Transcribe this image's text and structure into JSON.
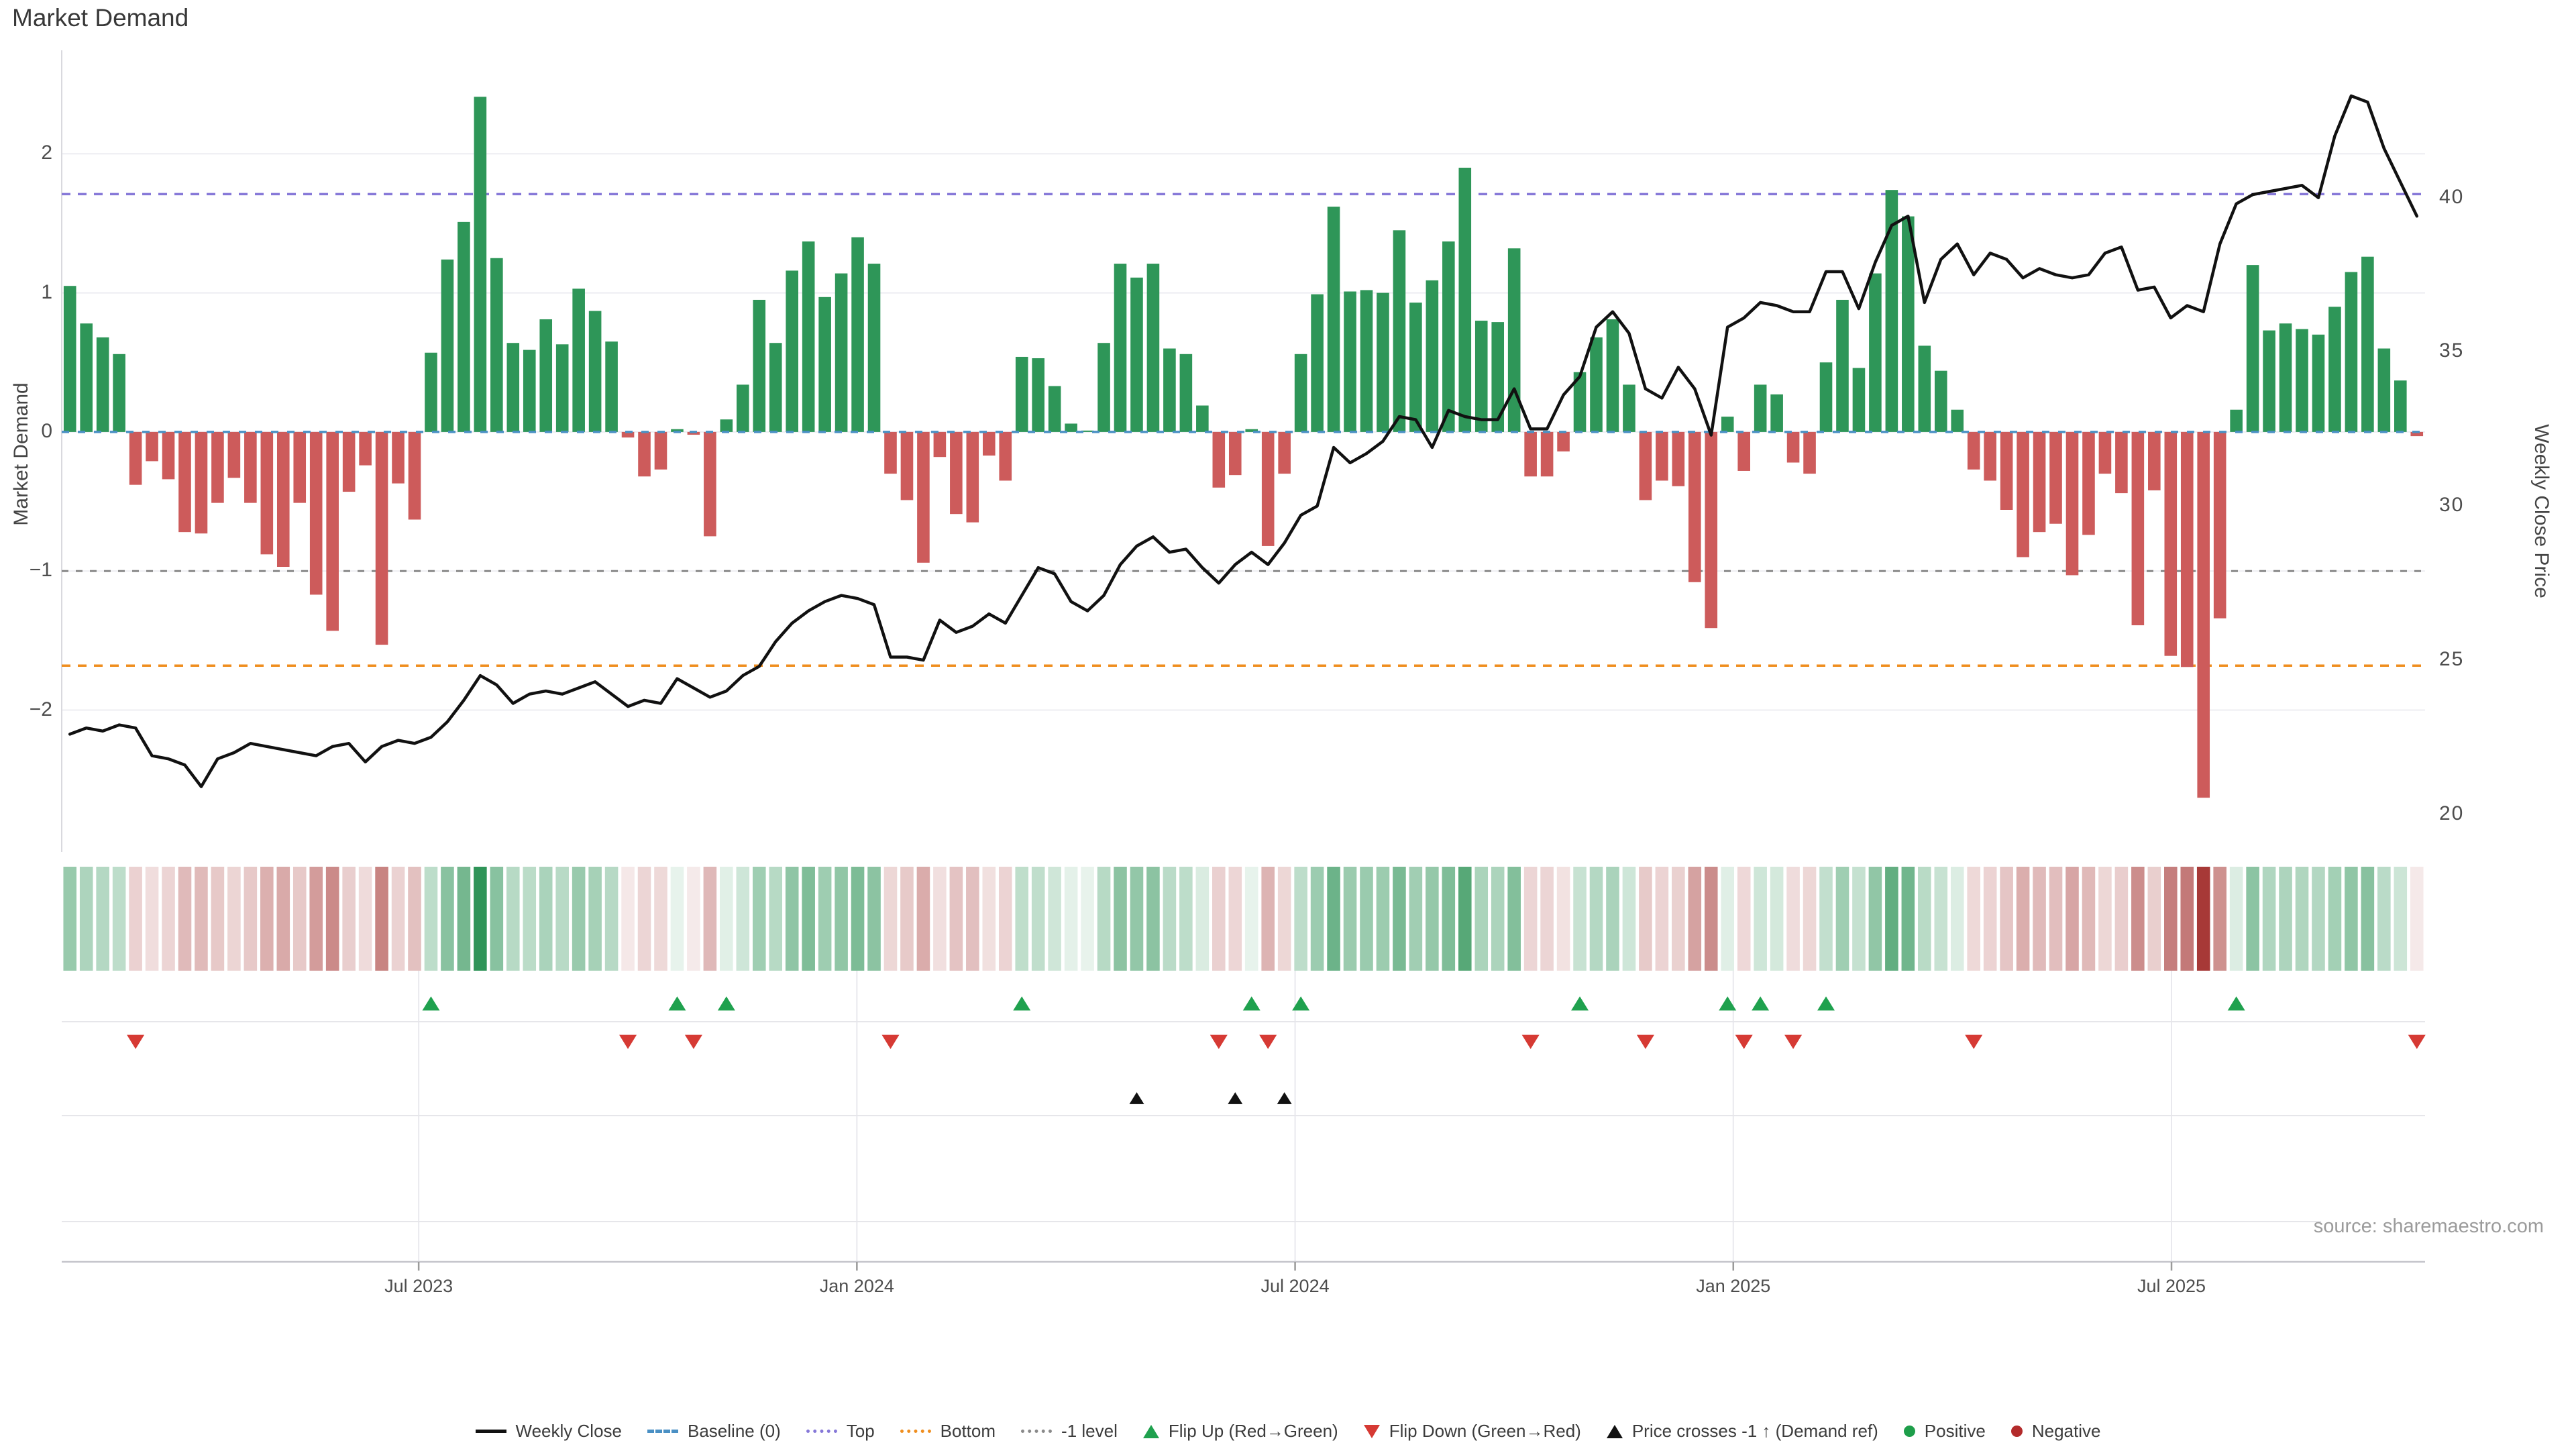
{
  "title": "Market Demand",
  "source": "source: sharemaestro.com",
  "axes": {
    "left_label": "Market Demand",
    "right_label": "Weekly Close Price",
    "demand_ticks": [
      2,
      1,
      0,
      -1,
      -2
    ],
    "price_ticks": [
      40,
      35,
      30,
      25,
      20
    ],
    "x_ticks": [
      {
        "label": "Jul 2023",
        "pos": 21.75
      },
      {
        "label": "Jan 2024",
        "pos": 48.45
      },
      {
        "label": "Jul 2024",
        "pos": 75.15
      },
      {
        "label": "Jan 2025",
        "pos": 101.85
      },
      {
        "label": "Jul 2025",
        "pos": 128.55
      }
    ]
  },
  "colors": {
    "bar_positive": "#2e9658",
    "bar_negative": "#cd5b5b",
    "price_line": "#111111",
    "baseline": "#4a90c4",
    "top_line": "#8678d8",
    "bottom_line": "#ef8e1f",
    "minus_one_line": "#8a8a8a",
    "flip_up": "#1fa14e",
    "flip_down": "#d63a34",
    "price_cross": "#111111",
    "grid": "#ededf2",
    "axis": "#c6c6cc"
  },
  "legend": {
    "items": [
      {
        "label": "Weekly Close",
        "swatch": "line",
        "color": "#111111"
      },
      {
        "label": "Baseline (0)",
        "swatch": "dashed",
        "color": "#4a90c4"
      },
      {
        "label": "Top",
        "swatch": "dotted",
        "color": "#8678d8"
      },
      {
        "label": "Bottom",
        "swatch": "dotted",
        "color": "#ef8e1f"
      },
      {
        "label": "-1 level",
        "swatch": "dotted",
        "color": "#8a8a8a"
      },
      {
        "label": "Flip Up (Red→Green)",
        "swatch": "tri-up",
        "color": "#1fa14e"
      },
      {
        "label": "Flip Down (Green→Red)",
        "swatch": "tri-down",
        "color": "#d63a34"
      },
      {
        "label": "Price crosses -1 ↑ (Demand ref)",
        "swatch": "tri-up",
        "color": "#111111"
      },
      {
        "label": "Positive",
        "swatch": "circle",
        "color": "#1e9e4a"
      },
      {
        "label": "Negative",
        "swatch": "circle",
        "color": "#b32b2b"
      }
    ]
  },
  "chart_data": {
    "type": "bar+line",
    "x_unit": "week",
    "ylim_demand": [
      -3.02,
      2.72
    ],
    "ylim_price": [
      18.78,
      44.67
    ],
    "reference_lines": {
      "baseline": 0,
      "top": 1.71,
      "bottom": -1.68,
      "minus_one": -1
    },
    "series": [
      {
        "name": "Market Demand",
        "type": "bar",
        "values": [
          1.05,
          0.78,
          0.68,
          0.56,
          -0.38,
          -0.21,
          -0.34,
          -0.72,
          -0.73,
          -0.51,
          -0.33,
          -0.51,
          -0.88,
          -0.97,
          -0.51,
          -1.17,
          -1.43,
          -0.43,
          -0.24,
          -1.53,
          -0.37,
          -0.63,
          0.57,
          1.24,
          1.51,
          2.41,
          1.25,
          0.64,
          0.59,
          0.81,
          0.63,
          1.03,
          0.87,
          0.65,
          -0.04,
          -0.32,
          -0.27,
          0.02,
          -0.02,
          -0.75,
          0.09,
          0.34,
          0.95,
          0.64,
          1.16,
          1.37,
          0.97,
          1.14,
          1.4,
          1.21,
          -0.3,
          -0.49,
          -0.94,
          -0.18,
          -0.59,
          -0.65,
          -0.17,
          -0.35,
          0.54,
          0.53,
          0.33,
          0.06,
          0.01,
          0.64,
          1.21,
          1.11,
          1.21,
          0.6,
          0.56,
          0.19,
          -0.4,
          -0.31,
          0.02,
          -0.82,
          -0.3,
          0.56,
          0.99,
          1.62,
          1.01,
          1.02,
          1.0,
          1.45,
          0.93,
          1.09,
          1.37,
          1.9,
          0.8,
          0.79,
          1.32,
          -0.32,
          -0.32,
          -0.14,
          0.43,
          0.68,
          0.81,
          0.34,
          -0.49,
          -0.35,
          -0.39,
          -1.08,
          -1.41,
          0.11,
          -0.28,
          0.34,
          0.27,
          -0.22,
          -0.3,
          0.5,
          0.95,
          0.46,
          1.14,
          1.74,
          1.55,
          0.62,
          0.44,
          0.16,
          -0.27,
          -0.35,
          -0.56,
          -0.9,
          -0.72,
          -0.66,
          -1.03,
          -0.74,
          -0.3,
          -0.44,
          -1.39,
          -0.42,
          -1.61,
          -1.69,
          -2.63,
          -1.34,
          0.16,
          1.2,
          0.73,
          0.78,
          0.74,
          0.7,
          0.9,
          1.15,
          1.26,
          0.6,
          0.37,
          -0.03
        ]
      },
      {
        "name": "Weekly Close",
        "type": "line",
        "values": [
          22.6,
          22.8,
          22.7,
          22.9,
          22.8,
          21.9,
          21.8,
          21.6,
          20.9,
          21.8,
          22.0,
          22.3,
          22.2,
          22.1,
          22.0,
          21.9,
          22.2,
          22.3,
          21.7,
          22.2,
          22.4,
          22.3,
          22.5,
          23.0,
          23.7,
          24.5,
          24.2,
          23.6,
          23.9,
          24.0,
          23.9,
          24.1,
          24.3,
          23.9,
          23.5,
          23.7,
          23.6,
          24.4,
          24.1,
          23.8,
          24.0,
          24.5,
          24.8,
          25.6,
          26.2,
          26.6,
          26.9,
          27.1,
          27.0,
          26.8,
          25.1,
          25.1,
          25.0,
          26.3,
          25.9,
          26.1,
          26.5,
          26.2,
          27.1,
          28.0,
          27.8,
          26.9,
          26.6,
          27.1,
          28.1,
          28.7,
          29.0,
          28.5,
          28.6,
          28.0,
          27.5,
          28.1,
          28.5,
          28.1,
          28.8,
          29.7,
          30.0,
          31.9,
          31.4,
          31.7,
          32.1,
          32.9,
          32.8,
          31.9,
          33.1,
          32.9,
          32.8,
          32.8,
          33.8,
          32.5,
          32.5,
          33.6,
          34.2,
          35.8,
          36.3,
          35.6,
          33.8,
          33.5,
          34.5,
          33.8,
          32.3,
          35.8,
          36.1,
          36.6,
          36.5,
          36.3,
          36.3,
          37.6,
          37.6,
          36.4,
          37.9,
          39.1,
          39.4,
          36.6,
          38.0,
          38.5,
          37.5,
          38.2,
          38.0,
          37.4,
          37.7,
          37.5,
          37.4,
          37.5,
          38.2,
          38.4,
          37.0,
          37.1,
          36.1,
          36.5,
          36.3,
          38.5,
          39.8,
          40.1,
          40.2,
          40.3,
          40.4,
          40.0,
          42.0,
          43.3,
          43.1,
          41.6,
          40.5,
          39.4
        ]
      }
    ],
    "markers": {
      "flip_up": [
        22,
        37,
        40,
        58,
        72,
        75,
        92,
        101,
        103,
        107,
        132
      ],
      "flip_down": [
        4,
        34,
        38,
        50,
        70,
        73,
        89,
        96,
        102,
        105,
        116,
        143
      ],
      "price_cross_minus1": [
        65,
        71,
        74
      ]
    },
    "heatmap": {
      "source": "demand values",
      "max_abs": 2.65,
      "positive_base": [
        29,
        138,
        73
      ],
      "negative_base": [
        166,
        56,
        54
      ]
    }
  }
}
